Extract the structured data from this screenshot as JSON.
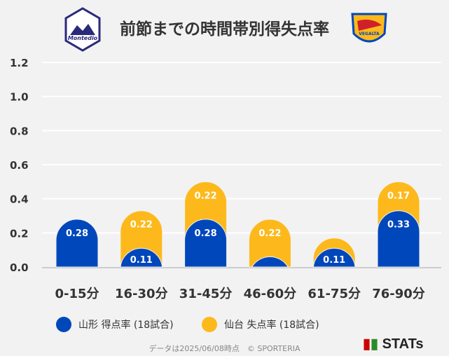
{
  "title": "前節までの時間帯別得失点率",
  "footer": "データは2025/06/08時点　© SPORTERIA",
  "brand": "STATs",
  "logos": {
    "home": "Montedio YAMAGATA",
    "away": "VEGALTA"
  },
  "chart_data": {
    "type": "bar",
    "stacked": true,
    "categories": [
      "0-15分",
      "16-30分",
      "31-45分",
      "46-60分",
      "61-75分",
      "76-90分"
    ],
    "ylim": [
      0,
      1.2
    ],
    "yticks": [
      "0.0",
      "0.2",
      "0.4",
      "0.6",
      "0.8",
      "1.0",
      "1.2"
    ],
    "grid": true,
    "legend": "bottom",
    "series": [
      {
        "name": "山形 得点率 (18試合)",
        "color": "#0047bb",
        "values": [
          0.28,
          0.11,
          0.28,
          0.06,
          0.11,
          0.33
        ],
        "labels": [
          "0.28",
          "0.11",
          "0.28",
          "",
          "0.11",
          "0.33"
        ]
      },
      {
        "name": "仙台 失点率 (18試合)",
        "color": "#fdb91c",
        "values": [
          0,
          0.22,
          0.22,
          0.22,
          0.06,
          0.17
        ],
        "labels": [
          "",
          "0.22",
          "0.22",
          "0.22",
          "",
          "0.17"
        ]
      }
    ]
  }
}
